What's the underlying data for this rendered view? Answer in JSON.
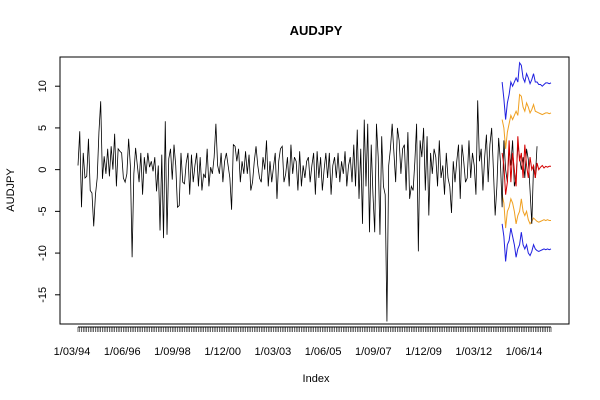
{
  "chart_data": {
    "type": "line",
    "title": "AUDJPY",
    "xlabel": "Index",
    "ylabel": "AUDJPY",
    "ylim": [
      -18.5,
      13.5
    ],
    "y_ticks": [
      -15,
      -10,
      -5,
      0,
      5,
      10
    ],
    "y_tick_labels": [
      "-15",
      "-10",
      "-5",
      "0",
      "5",
      "10"
    ],
    "x_tick_labels": [
      "1/03/94",
      "1/06/96",
      "1/09/98",
      "1/12/00",
      "1/03/03",
      "1/06/05",
      "1/09/07",
      "1/12/09",
      "1/03/12",
      "1/06/14"
    ],
    "grid": false,
    "colors": {
      "series": "#000000",
      "fit": "#d40000",
      "band80": "#f0a020",
      "band95": "#2020e0"
    },
    "series": [
      {
        "values": [
          0.5,
          4.6,
          -4.5,
          2.0,
          -1.0,
          -0.8,
          3.7,
          -2.5,
          -2.8,
          -6.8,
          -3.0,
          -1.0,
          4.5,
          8.2,
          -1.1,
          1.6,
          -0.5,
          2.5,
          -0.8,
          2.8,
          0.0,
          4.3,
          -2.0,
          2.5,
          2.2,
          2.0,
          -1.0,
          -1.5,
          -0.5,
          3.7,
          0.5,
          -10.5,
          -0.5,
          2.6,
          0.5,
          -1.5,
          2.0,
          -3.0,
          1.5,
          -0.5,
          2.0,
          0.3,
          1.0,
          -0.2,
          1.5,
          -2.6,
          0.5,
          -7.3,
          1.8,
          -8.2,
          5.8,
          -7.8,
          1.3,
          2.5,
          -1.2,
          3.0,
          0.5,
          -4.5,
          -4.3,
          2.0,
          -1.5,
          -1.7,
          0.8,
          2.0,
          -3.0,
          1.8,
          -1.5,
          0.5,
          2.0,
          -2.0,
          1.5,
          -2.5,
          -0.5,
          -1.0,
          2.5,
          -2.0,
          0.3,
          -0.5,
          1.5,
          5.5,
          0.5,
          -0.5,
          2.0,
          -1.5,
          1.0,
          2.0,
          0.5,
          -1.0,
          -4.8,
          3.0,
          2.8,
          1.0,
          2.5,
          -1.5,
          1.0,
          -0.5,
          2.2,
          -0.5,
          1.8,
          -2.5,
          -1.5,
          1.0,
          2.8,
          0.5,
          -1.0,
          -1.5,
          1.5,
          0.0,
          3.5,
          -2.0,
          1.0,
          -1.5,
          0.3,
          2.0,
          -3.5,
          1.0,
          2.5,
          2.8,
          -1.5,
          -0.5,
          1.5,
          -2.0,
          3.0,
          -0.5,
          1.5,
          1.0,
          -2.5,
          2.2,
          -2.0,
          0.5,
          -1.0,
          1.0,
          1.5,
          -1.5,
          0.5,
          2.0,
          -3.0,
          2.2,
          -1.0,
          1.5,
          -2.5,
          0.0,
          2.0,
          -1.0,
          2.0,
          -3.0,
          0.5,
          1.5,
          -1.0,
          2.0,
          -1.5,
          1.0,
          -0.5,
          2.2,
          -2.0,
          0.5,
          1.5,
          -1.5,
          3.0,
          -2.0,
          4.8,
          -3.5,
          2.5,
          -6.5,
          6.0,
          -2.0,
          5.5,
          -7.5,
          3.0,
          -3.0,
          -7.5,
          5.5,
          1.5,
          -7.8,
          4.0,
          -2.0,
          -3.0,
          -18.2,
          0.5,
          2.5,
          5.5,
          2.0,
          -1.5,
          5.0,
          3.5,
          -0.5,
          2.5,
          3.0,
          -2.5,
          4.5,
          -3.5,
          -2.0,
          -2.5,
          1.0,
          5.5,
          -9.8,
          3.5,
          1.5,
          5.0,
          -2.5,
          4.0,
          -5.5,
          2.0,
          -0.5,
          2.5,
          1.5,
          -2.0,
          3.5,
          -1.0,
          0.5,
          -3.0,
          2.0,
          -1.0,
          -2.0,
          -5.2,
          1.0,
          -1.5,
          1.0,
          3.0,
          -3.5,
          3.0,
          1.0,
          -1.5,
          -1.0,
          3.5,
          -1.0,
          2.0,
          0.5,
          -3.0,
          8.3,
          1.0,
          2.5,
          -2.5,
          1.5,
          4.2,
          -1.5,
          3.0,
          5.0,
          0.0,
          -5.5,
          -2.0,
          3.8,
          1.0,
          -4.5,
          3.5,
          0.0,
          -1.5,
          2.5,
          0.5,
          3.5,
          -2.0,
          -1.0,
          3.0,
          1.5,
          0.0,
          1.5,
          -1.0,
          2.5,
          1.2,
          -2.5,
          -6.5,
          0.5,
          -1.0,
          2.8
        ]
      }
    ],
    "forecast_upper95": [
      10.5,
      8.5,
      6.0,
      8.0,
      9.0,
      10.5,
      10.0,
      10.5,
      11.0,
      10.5,
      12.8,
      12.5,
      11.0,
      10.5,
      11.5,
      11.0,
      10.3,
      10.8,
      11.5,
      10.5,
      10.5,
      10.2,
      10.2,
      10.0,
      10.2,
      10.4,
      10.4,
      10.3,
      10.4
    ],
    "forecast_lower95": [
      -6.5,
      -8.0,
      -11.0,
      -9.0,
      -8.5,
      -7.0,
      -8.0,
      -9.0,
      -10.5,
      -9.5,
      -9.0,
      -7.5,
      -9.0,
      -9.5,
      -9.0,
      -10.0,
      -10.3,
      -9.8,
      -9.0,
      -9.5,
      -9.7,
      -9.8,
      -9.7,
      -9.6,
      -9.5,
      -9.6,
      -9.5,
      -9.6,
      -9.5
    ],
    "forecast_upper80": [
      6.0,
      5.0,
      2.5,
      4.5,
      5.5,
      6.5,
      6.0,
      6.5,
      7.0,
      6.5,
      9.0,
      8.8,
      7.5,
      7.0,
      8.0,
      7.5,
      6.8,
      7.2,
      7.8,
      7.0,
      6.9,
      6.8,
      6.7,
      6.6,
      6.7,
      6.8,
      6.8,
      6.7,
      6.8
    ],
    "forecast_lower80": [
      -3.0,
      -4.0,
      -7.0,
      -5.0,
      -4.5,
      -3.5,
      -4.0,
      -5.0,
      -6.5,
      -5.5,
      -5.0,
      -3.5,
      -5.0,
      -5.5,
      -5.0,
      -6.0,
      -6.5,
      -6.2,
      -5.8,
      -6.0,
      -6.2,
      -6.3,
      -6.2,
      -6.1,
      -6.0,
      -6.1,
      -6.0,
      -6.1,
      -6.1
    ],
    "fitted": [
      2.0,
      0.5,
      -3.0,
      -1.5,
      3.5,
      -1.5,
      2.0,
      0.0,
      -2.0,
      4.0,
      1.0,
      2.0,
      -1.0,
      3.0,
      0.5,
      -1.0,
      1.5,
      0.0,
      0.5,
      -1.0,
      0.8,
      0.0,
      0.3,
      0.5,
      0.2,
      0.4,
      0.3,
      0.4,
      0.4
    ]
  }
}
